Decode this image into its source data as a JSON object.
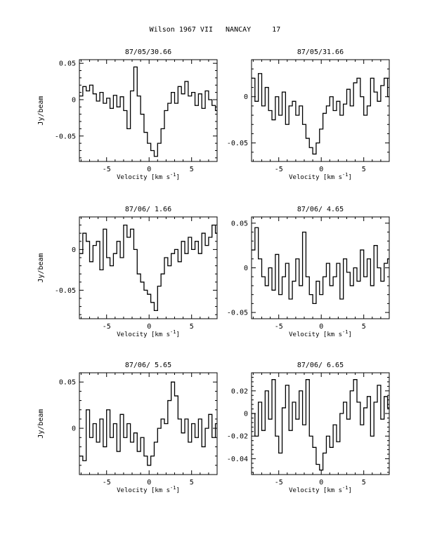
{
  "page": {
    "title": "Wilson 1967 VII   NANCAY     17"
  },
  "chart_data": [
    {
      "type": "line",
      "title": "87/05/30.66",
      "xlabel": "Velocity [km s^-1]",
      "ylabel": "Jy/beam",
      "xlim": [
        -8.2,
        8.0
      ],
      "ylim": [
        -0.085,
        0.055
      ],
      "xticks": [
        -5,
        0,
        5
      ],
      "yticks": [
        -0.05,
        0,
        0.05
      ],
      "ytick_labels": [
        "-0.05",
        "0",
        "0.05"
      ],
      "series": [
        {
          "values": [
            [
              -8.0,
              0.005
            ],
            [
              -7.6,
              0.018
            ],
            [
              -7.2,
              0.012
            ],
            [
              -6.8,
              0.02
            ],
            [
              -6.4,
              0.008
            ],
            [
              -6.0,
              -0.002
            ],
            [
              -5.6,
              0.01
            ],
            [
              -5.2,
              -0.005
            ],
            [
              -4.8,
              0.002
            ],
            [
              -4.4,
              -0.012
            ],
            [
              -4.0,
              0.006
            ],
            [
              -3.6,
              -0.01
            ],
            [
              -3.2,
              0.004
            ],
            [
              -2.8,
              -0.015
            ],
            [
              -2.4,
              -0.04
            ],
            [
              -2.0,
              0.012
            ],
            [
              -1.6,
              0.045
            ],
            [
              -1.2,
              0.005
            ],
            [
              -0.8,
              -0.02
            ],
            [
              -0.4,
              -0.045
            ],
            [
              0.0,
              -0.06
            ],
            [
              0.4,
              -0.07
            ],
            [
              0.8,
              -0.078
            ],
            [
              1.2,
              -0.06
            ],
            [
              1.6,
              -0.04
            ],
            [
              2.0,
              -0.015
            ],
            [
              2.4,
              -0.005
            ],
            [
              2.8,
              0.01
            ],
            [
              3.2,
              -0.005
            ],
            [
              3.6,
              0.018
            ],
            [
              4.0,
              0.008
            ],
            [
              4.4,
              0.025
            ],
            [
              4.8,
              0.005
            ],
            [
              5.2,
              0.01
            ],
            [
              5.6,
              -0.008
            ],
            [
              6.0,
              0.008
            ],
            [
              6.4,
              -0.012
            ],
            [
              6.8,
              0.012
            ],
            [
              7.2,
              0.0
            ],
            [
              7.6,
              -0.008
            ],
            [
              8.0,
              -0.015
            ]
          ]
        }
      ]
    },
    {
      "type": "line",
      "title": "87/05/31.66",
      "xlabel": "Velocity [km s^-1]",
      "ylabel": "",
      "xlim": [
        -8.2,
        8.0
      ],
      "ylim": [
        -0.07,
        0.04
      ],
      "xticks": [
        -5,
        0,
        5
      ],
      "yticks": [
        -0.05,
        0
      ],
      "ytick_labels": [
        "-0.05",
        "0"
      ],
      "series": [
        {
          "values": [
            [
              -8.0,
              0.02
            ],
            [
              -7.6,
              -0.005
            ],
            [
              -7.2,
              0.025
            ],
            [
              -6.8,
              -0.01
            ],
            [
              -6.4,
              0.01
            ],
            [
              -6.0,
              -0.015
            ],
            [
              -5.6,
              -0.025
            ],
            [
              -5.2,
              0.0
            ],
            [
              -4.8,
              -0.02
            ],
            [
              -4.4,
              0.005
            ],
            [
              -4.0,
              -0.03
            ],
            [
              -3.6,
              -0.01
            ],
            [
              -3.2,
              -0.005
            ],
            [
              -2.8,
              -0.02
            ],
            [
              -2.4,
              -0.01
            ],
            [
              -2.0,
              -0.03
            ],
            [
              -1.6,
              -0.045
            ],
            [
              -1.2,
              -0.055
            ],
            [
              -0.8,
              -0.062
            ],
            [
              -0.4,
              -0.05
            ],
            [
              0.0,
              -0.035
            ],
            [
              0.4,
              -0.018
            ],
            [
              0.8,
              -0.01
            ],
            [
              1.2,
              0.0
            ],
            [
              1.6,
              -0.015
            ],
            [
              2.0,
              -0.005
            ],
            [
              2.4,
              -0.02
            ],
            [
              2.8,
              -0.008
            ],
            [
              3.2,
              0.008
            ],
            [
              3.6,
              -0.01
            ],
            [
              4.0,
              0.015
            ],
            [
              4.4,
              0.02
            ],
            [
              4.8,
              0.0
            ],
            [
              5.2,
              -0.02
            ],
            [
              5.6,
              -0.01
            ],
            [
              6.0,
              0.02
            ],
            [
              6.4,
              0.005
            ],
            [
              6.8,
              -0.005
            ],
            [
              7.2,
              0.012
            ],
            [
              7.6,
              0.02
            ],
            [
              8.0,
              0.0
            ]
          ]
        }
      ]
    },
    {
      "type": "line",
      "title": "87/06/ 1.66",
      "xlabel": "Velocity [km s^-1]",
      "ylabel": "Jy/beam",
      "xlim": [
        -8.2,
        8.0
      ],
      "ylim": [
        -0.085,
        0.04
      ],
      "xticks": [
        -5,
        0,
        5
      ],
      "yticks": [
        -0.05,
        0
      ],
      "ytick_labels": [
        "-0.05",
        "0"
      ],
      "series": [
        {
          "values": [
            [
              -8.0,
              -0.005
            ],
            [
              -7.6,
              0.02
            ],
            [
              -7.2,
              0.01
            ],
            [
              -6.8,
              -0.015
            ],
            [
              -6.4,
              0.005
            ],
            [
              -6.0,
              0.01
            ],
            [
              -5.6,
              -0.025
            ],
            [
              -5.2,
              0.025
            ],
            [
              -4.8,
              -0.01
            ],
            [
              -4.4,
              -0.02
            ],
            [
              -4.0,
              -0.005
            ],
            [
              -3.6,
              0.01
            ],
            [
              -3.2,
              -0.01
            ],
            [
              -2.8,
              0.03
            ],
            [
              -2.4,
              0.015
            ],
            [
              -2.0,
              0.025
            ],
            [
              -1.6,
              0.0
            ],
            [
              -1.2,
              -0.03
            ],
            [
              -0.8,
              -0.04
            ],
            [
              -0.4,
              -0.05
            ],
            [
              0.0,
              -0.055
            ],
            [
              0.4,
              -0.065
            ],
            [
              0.8,
              -0.075
            ],
            [
              1.2,
              -0.045
            ],
            [
              1.6,
              -0.03
            ],
            [
              2.0,
              -0.01
            ],
            [
              2.4,
              -0.02
            ],
            [
              2.8,
              -0.005
            ],
            [
              3.2,
              0.0
            ],
            [
              3.6,
              -0.015
            ],
            [
              4.0,
              0.01
            ],
            [
              4.4,
              -0.005
            ],
            [
              4.8,
              0.015
            ],
            [
              5.2,
              0.0
            ],
            [
              5.6,
              0.01
            ],
            [
              6.0,
              -0.005
            ],
            [
              6.4,
              0.02
            ],
            [
              6.8,
              0.005
            ],
            [
              7.2,
              0.015
            ],
            [
              7.6,
              0.03
            ],
            [
              8.0,
              0.02
            ]
          ]
        }
      ]
    },
    {
      "type": "line",
      "title": "87/06/ 4.65",
      "xlabel": "Velocity [km s^-1]",
      "ylabel": "",
      "xlim": [
        -8.2,
        8.0
      ],
      "ylim": [
        -0.057,
        0.057
      ],
      "xticks": [
        -5,
        0,
        5
      ],
      "yticks": [
        -0.05,
        0,
        0.05
      ],
      "ytick_labels": [
        "-0.05",
        "0",
        "0.05"
      ],
      "series": [
        {
          "values": [
            [
              -8.0,
              0.02
            ],
            [
              -7.6,
              0.045
            ],
            [
              -7.2,
              0.01
            ],
            [
              -6.8,
              -0.01
            ],
            [
              -6.4,
              -0.02
            ],
            [
              -6.0,
              0.0
            ],
            [
              -5.6,
              -0.025
            ],
            [
              -5.2,
              0.015
            ],
            [
              -4.8,
              -0.03
            ],
            [
              -4.4,
              -0.01
            ],
            [
              -4.0,
              0.005
            ],
            [
              -3.6,
              -0.035
            ],
            [
              -3.2,
              -0.015
            ],
            [
              -2.8,
              0.01
            ],
            [
              -2.4,
              -0.02
            ],
            [
              -2.0,
              0.04
            ],
            [
              -1.6,
              -0.01
            ],
            [
              -1.2,
              -0.03
            ],
            [
              -0.8,
              -0.04
            ],
            [
              -0.4,
              -0.015
            ],
            [
              0.0,
              -0.03
            ],
            [
              0.4,
              -0.01
            ],
            [
              0.8,
              0.005
            ],
            [
              1.2,
              -0.02
            ],
            [
              1.6,
              -0.01
            ],
            [
              2.0,
              0.005
            ],
            [
              2.4,
              -0.035
            ],
            [
              2.8,
              0.01
            ],
            [
              3.2,
              -0.005
            ],
            [
              3.6,
              -0.02
            ],
            [
              4.0,
              0.0
            ],
            [
              4.4,
              -0.015
            ],
            [
              4.8,
              0.02
            ],
            [
              5.2,
              -0.01
            ],
            [
              5.6,
              0.01
            ],
            [
              6.0,
              -0.02
            ],
            [
              6.4,
              0.025
            ],
            [
              6.8,
              0.0
            ],
            [
              7.2,
              -0.015
            ],
            [
              7.6,
              0.005
            ],
            [
              8.0,
              0.01
            ]
          ]
        }
      ]
    },
    {
      "type": "line",
      "title": "87/06/ 5.65",
      "xlabel": "Velocity [km s^-1]",
      "ylabel": "Jy/beam",
      "xlim": [
        -8.2,
        8.0
      ],
      "ylim": [
        -0.05,
        0.06
      ],
      "xticks": [
        -5,
        0,
        5
      ],
      "yticks": [
        0,
        0.05
      ],
      "ytick_labels": [
        "0",
        "0.05"
      ],
      "series": [
        {
          "values": [
            [
              -8.0,
              -0.03
            ],
            [
              -7.6,
              -0.035
            ],
            [
              -7.2,
              0.02
            ],
            [
              -6.8,
              -0.01
            ],
            [
              -6.4,
              0.005
            ],
            [
              -6.0,
              -0.015
            ],
            [
              -5.6,
              0.01
            ],
            [
              -5.2,
              -0.02
            ],
            [
              -4.8,
              0.02
            ],
            [
              -4.4,
              -0.01
            ],
            [
              -4.0,
              0.005
            ],
            [
              -3.6,
              -0.025
            ],
            [
              -3.2,
              0.015
            ],
            [
              -2.8,
              -0.01
            ],
            [
              -2.4,
              0.005
            ],
            [
              -2.0,
              -0.015
            ],
            [
              -1.6,
              -0.005
            ],
            [
              -1.2,
              -0.025
            ],
            [
              -0.8,
              -0.01
            ],
            [
              -0.4,
              -0.03
            ],
            [
              0.0,
              -0.04
            ],
            [
              0.4,
              -0.03
            ],
            [
              0.8,
              -0.015
            ],
            [
              1.2,
              0.0
            ],
            [
              1.6,
              0.01
            ],
            [
              2.0,
              0.005
            ],
            [
              2.4,
              0.03
            ],
            [
              2.8,
              0.05
            ],
            [
              3.2,
              0.035
            ],
            [
              3.6,
              0.01
            ],
            [
              4.0,
              -0.005
            ],
            [
              4.4,
              0.01
            ],
            [
              4.8,
              -0.015
            ],
            [
              5.2,
              0.005
            ],
            [
              5.6,
              -0.01
            ],
            [
              6.0,
              0.01
            ],
            [
              6.4,
              -0.02
            ],
            [
              6.8,
              0.0
            ],
            [
              7.2,
              0.015
            ],
            [
              7.6,
              -0.01
            ],
            [
              8.0,
              0.005
            ]
          ]
        }
      ]
    },
    {
      "type": "line",
      "title": "87/06/ 6.65",
      "xlabel": "Velocity [km s^-1]",
      "ylabel": "",
      "xlim": [
        -8.2,
        8.0
      ],
      "ylim": [
        -0.054,
        0.036
      ],
      "xticks": [
        -5,
        0,
        5
      ],
      "yticks": [
        -0.04,
        -0.02,
        0,
        0.02
      ],
      "ytick_labels": [
        "-0.04",
        "-0.02",
        "0",
        "0.02"
      ],
      "series": [
        {
          "values": [
            [
              -8.0,
              0.0
            ],
            [
              -7.6,
              -0.02
            ],
            [
              -7.2,
              0.01
            ],
            [
              -6.8,
              -0.015
            ],
            [
              -6.4,
              0.02
            ],
            [
              -6.0,
              -0.005
            ],
            [
              -5.6,
              0.03
            ],
            [
              -5.2,
              -0.02
            ],
            [
              -4.8,
              -0.035
            ],
            [
              -4.4,
              0.005
            ],
            [
              -4.0,
              0.025
            ],
            [
              -3.6,
              -0.015
            ],
            [
              -3.2,
              0.01
            ],
            [
              -2.8,
              -0.005
            ],
            [
              -2.4,
              0.02
            ],
            [
              -2.0,
              -0.01
            ],
            [
              -1.6,
              0.03
            ],
            [
              -1.2,
              -0.02
            ],
            [
              -0.8,
              -0.03
            ],
            [
              -0.4,
              -0.045
            ],
            [
              0.0,
              -0.05
            ],
            [
              0.4,
              -0.035
            ],
            [
              0.8,
              -0.02
            ],
            [
              1.2,
              -0.03
            ],
            [
              1.6,
              -0.01
            ],
            [
              2.0,
              -0.025
            ],
            [
              2.4,
              0.0
            ],
            [
              2.8,
              0.01
            ],
            [
              3.2,
              -0.005
            ],
            [
              3.6,
              0.02
            ],
            [
              4.0,
              0.03
            ],
            [
              4.4,
              0.01
            ],
            [
              4.8,
              -0.01
            ],
            [
              5.2,
              0.005
            ],
            [
              5.6,
              0.015
            ],
            [
              6.0,
              -0.02
            ],
            [
              6.4,
              0.01
            ],
            [
              6.8,
              0.025
            ],
            [
              7.2,
              -0.005
            ],
            [
              7.6,
              0.015
            ],
            [
              8.0,
              0.005
            ]
          ]
        }
      ]
    }
  ]
}
